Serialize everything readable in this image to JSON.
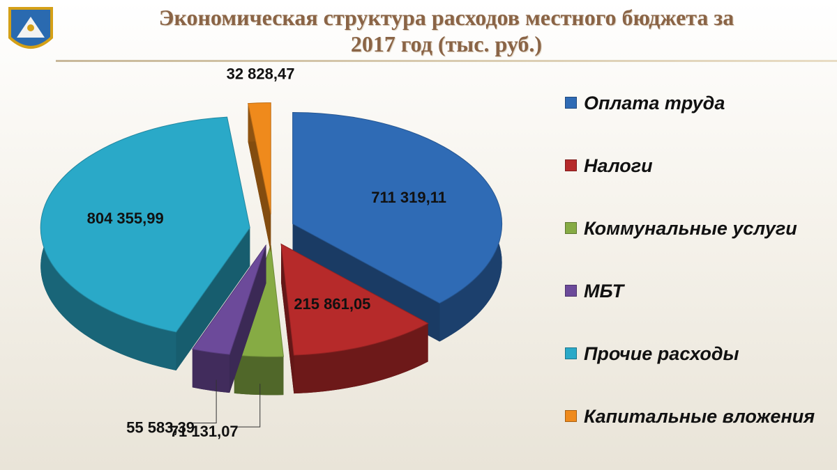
{
  "chart_data": {
    "type": "pie",
    "title": "Экономическая структура расходов местного бюджета за 2017 год (тыс. руб.)",
    "categories": [
      "Оплата труда",
      "Налоги",
      "Коммунальные услуги",
      "МБТ",
      "Прочие расходы",
      "Капитальные вложения"
    ],
    "values": [
      711319.11,
      215861.05,
      71131.07,
      55583.39,
      804355.99,
      32828.47
    ],
    "value_labels": [
      "711 319,11",
      "215 861,05",
      "71 131,07",
      "55 583,39",
      "804 355,99",
      "32 828,47"
    ],
    "colors": [
      "#2f6bb5",
      "#b62a2a",
      "#86ab44",
      "#6c4a9a",
      "#2aa9c8",
      "#ef8a1c"
    ],
    "legend": "right"
  }
}
